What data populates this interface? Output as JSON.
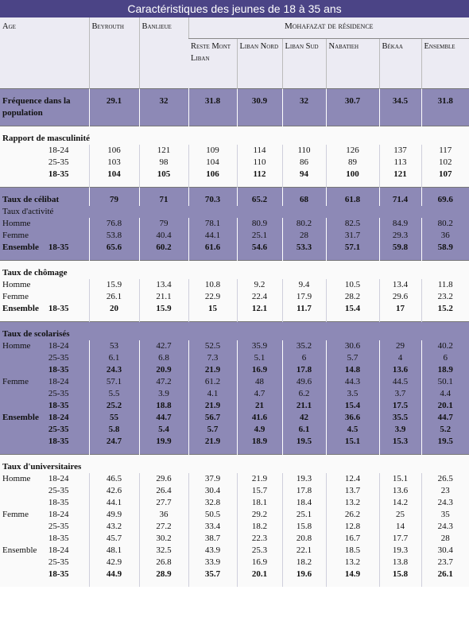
{
  "title": "Caractéristiques des jeunes de 18 à 35 ans",
  "table": {
    "age_header": "Age",
    "group_header": "Mohafazat de résidence",
    "columns": [
      "Beyrouth",
      "Banlieue",
      "Reste Mont Liban",
      "Liban Nord",
      "Liban Sud",
      "Nabatieh",
      "Békaa",
      "Ensemble"
    ],
    "sections": [
      {
        "shaded": true,
        "rows": [
          {
            "label": "Fréquence dans la population",
            "bold": true,
            "values": [
              29.1,
              32,
              31.8,
              30.9,
              32,
              30.7,
              34.5,
              31.8
            ]
          }
        ]
      },
      {
        "shaded": false,
        "rows": [
          {
            "label": "Rapport de masculinité",
            "bold": true
          },
          {
            "age": "18-24",
            "values": [
              106,
              121,
              109,
              114,
              110,
              126,
              137,
              117
            ]
          },
          {
            "age": "25-35",
            "values": [
              103,
              98,
              104,
              110,
              86,
              89,
              113,
              102
            ]
          },
          {
            "age": "18-35",
            "bold": true,
            "values": [
              104,
              105,
              106,
              112,
              94,
              100,
              121,
              107
            ]
          }
        ]
      },
      {
        "shaded": true,
        "rows": [
          {
            "label": "Taux de célibat",
            "bold": true,
            "values": [
              79,
              71,
              70.3,
              65.2,
              68,
              61.8,
              71.4,
              69.6
            ]
          },
          {
            "label": "Taux d'activité"
          },
          {
            "label": "Homme",
            "values": [
              76.8,
              79,
              78.1,
              80.9,
              80.2,
              82.5,
              84.9,
              80.2
            ]
          },
          {
            "label": "Femme",
            "values": [
              53.8,
              40.4,
              44.1,
              25.1,
              28,
              31.7,
              29.3,
              36
            ]
          },
          {
            "label": "Ensemble",
            "age": "18-35",
            "bold": true,
            "values": [
              65.6,
              60.2,
              61.6,
              54.6,
              53.3,
              57.1,
              59.8,
              58.9
            ]
          }
        ]
      },
      {
        "shaded": false,
        "rows": [
          {
            "label": "Taux de chômage",
            "bold": true
          },
          {
            "label": "Homme",
            "values": [
              15.9,
              13.4,
              10.8,
              9.2,
              9.4,
              10.5,
              13.4,
              11.8
            ]
          },
          {
            "label": "Femme",
            "values": [
              26.1,
              21.1,
              22.9,
              22.4,
              17.9,
              28.2,
              29.6,
              23.2
            ]
          },
          {
            "label": "Ensemble",
            "age": "18-35",
            "bold": true,
            "values": [
              20,
              15.9,
              15,
              12.1,
              11.7,
              15.4,
              17,
              15.2
            ]
          }
        ]
      },
      {
        "shaded": true,
        "rows": [
          {
            "label": "Taux de scolarisés",
            "bold": true
          },
          {
            "label": "Homme",
            "age": "18-24",
            "values": [
              53,
              42.7,
              52.5,
              35.9,
              35.2,
              30.6,
              29,
              40.2
            ]
          },
          {
            "age": "25-35",
            "values": [
              6.1,
              6.8,
              7.3,
              5.1,
              6,
              5.7,
              4,
              6
            ]
          },
          {
            "age": "18-35",
            "bold": true,
            "values": [
              24.3,
              20.9,
              21.9,
              16.9,
              17.8,
              14.8,
              13.6,
              18.9
            ]
          },
          {
            "label": "Femme",
            "age": "18-24",
            "values": [
              57.1,
              47.2,
              61.2,
              48,
              49.6,
              44.3,
              44.5,
              50.1
            ]
          },
          {
            "age": "25-35",
            "values": [
              5.5,
              3.9,
              4.1,
              4.7,
              6.2,
              3.5,
              3.7,
              4.4
            ]
          },
          {
            "age": "18-35",
            "bold": true,
            "values": [
              25.2,
              18.8,
              21.9,
              21,
              21.1,
              15.4,
              17.5,
              20.1
            ]
          },
          {
            "label": "Ensemble",
            "age": "18-24",
            "bold": true,
            "values": [
              55,
              44.7,
              56.7,
              41.6,
              42,
              36.6,
              35.5,
              44.7
            ]
          },
          {
            "age": "25-35",
            "bold": true,
            "values": [
              5.8,
              5.4,
              5.7,
              4.9,
              6.1,
              4.5,
              3.9,
              5.2
            ]
          },
          {
            "age": "18-35",
            "bold": true,
            "values": [
              24.7,
              19.9,
              21.9,
              18.9,
              19.5,
              15.1,
              15.3,
              19.5
            ]
          }
        ]
      },
      {
        "shaded": false,
        "rows": [
          {
            "label": "Taux d'universitaires",
            "bold": true
          },
          {
            "label": "Homme",
            "age": "18-24",
            "values": [
              46.5,
              29.6,
              37.9,
              21.9,
              19.3,
              12.4,
              15.1,
              26.5
            ]
          },
          {
            "age": "25-35",
            "values": [
              42.6,
              26.4,
              30.4,
              15.7,
              17.8,
              13.7,
              13.6,
              23
            ]
          },
          {
            "age": "18-35",
            "values": [
              44.1,
              27.7,
              32.8,
              18.1,
              18.4,
              13.2,
              14.2,
              24.3
            ]
          },
          {
            "label": "Femme",
            "age": "18-24",
            "values": [
              49.9,
              36,
              50.5,
              29.2,
              25.1,
              26.2,
              25,
              35
            ]
          },
          {
            "age": "25-35",
            "values": [
              43.2,
              27.2,
              33.4,
              18.2,
              15.8,
              12.8,
              14,
              24.3
            ]
          },
          {
            "age": "18-35",
            "values": [
              45.7,
              30.2,
              38.7,
              22.3,
              20.8,
              16.7,
              17.7,
              28
            ]
          },
          {
            "label": "Ensemble",
            "age": "18-24",
            "values": [
              48.1,
              32.5,
              43.9,
              25.3,
              22.1,
              18.5,
              19.3,
              30.4
            ]
          },
          {
            "age": "25-35",
            "values": [
              42.9,
              26.8,
              33.9,
              16.9,
              18.2,
              13.2,
              13.8,
              23.7
            ]
          },
          {
            "age": "18-35",
            "bold": true,
            "values": [
              44.9,
              28.9,
              35.7,
              20.1,
              19.6,
              14.9,
              15.8,
              26.1
            ]
          }
        ]
      }
    ]
  }
}
